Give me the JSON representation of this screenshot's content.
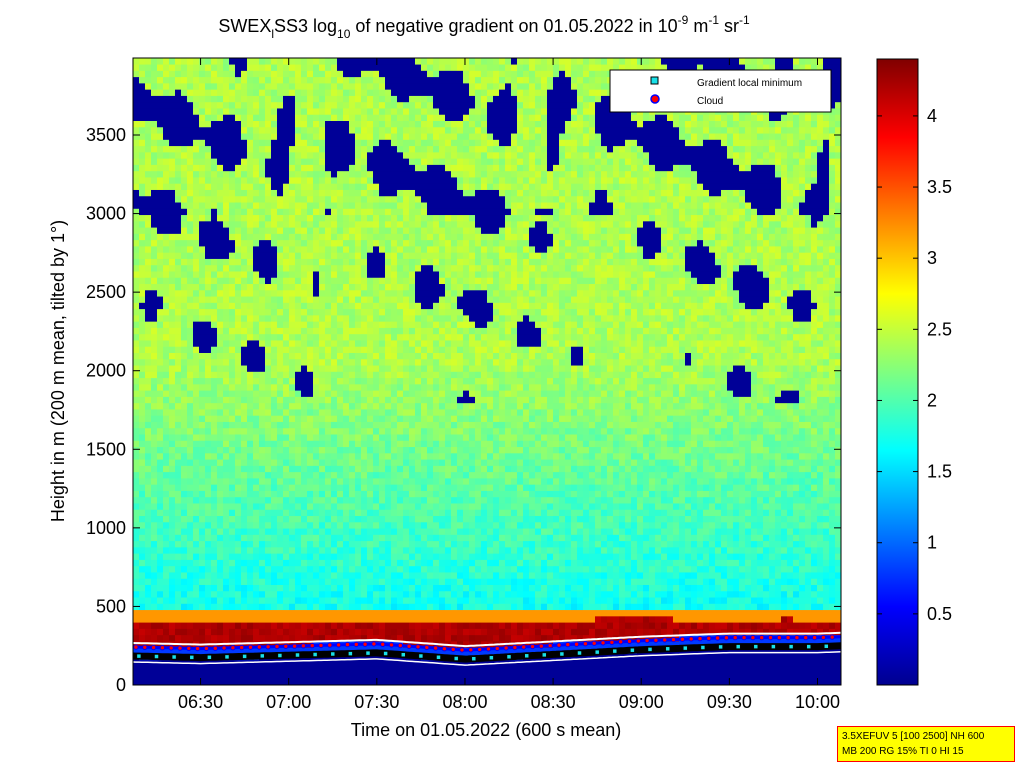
{
  "chart_data": {
    "type": "heatmap",
    "title": {
      "prefix": "SWEX",
      "prefix_sub": "l",
      "middle": "SS3 log",
      "middle_sub": "10",
      "rest": " of negative gradient on 01.05.2022 in 10",
      "exp1": "-9",
      "unit_m": " m",
      "exp2": "-1",
      "unit_sr": " sr",
      "exp3": "-1"
    },
    "xlabel": "Time on 01.05.2022 (600 s mean)",
    "ylabel": "Height in m (200 m mean, tilted by 1°)",
    "x_ticks": [
      "06:30",
      "07:00",
      "07:30",
      "08:00",
      "08:30",
      "09:00",
      "09:30",
      "10:00"
    ],
    "x_tick_minutes": [
      390,
      420,
      450,
      480,
      510,
      540,
      570,
      600
    ],
    "xlim_minutes": [
      367,
      608
    ],
    "y_ticks": [
      "0",
      "500",
      "1000",
      "1500",
      "2000",
      "2500",
      "3000",
      "3500"
    ],
    "y_tick_values": [
      0,
      500,
      1000,
      1500,
      2000,
      2500,
      3000,
      3500
    ],
    "ylim": [
      0,
      3990
    ],
    "colorbar": {
      "ticks": [
        "0.5",
        "1",
        "1.5",
        "2",
        "2.5",
        "3",
        "3.5",
        "4"
      ],
      "values": [
        0.5,
        1,
        1.5,
        2,
        2.5,
        3,
        3.5,
        4
      ],
      "range": [
        0,
        4.4
      ],
      "colormap": "jet"
    },
    "legend": {
      "placement": "top-right",
      "entries": [
        {
          "label": "Gradient local minimum",
          "marker": "square",
          "color": "#19e0e8"
        },
        {
          "label": "Cloud",
          "marker": "circle",
          "color": "#ff0000"
        }
      ]
    },
    "field_summary": {
      "surface_layer_value": 0.1,
      "boundary_layer_top_value": 4.3,
      "free_troposphere_value": 2.3,
      "upper_gap_value": 0.1
    },
    "cloud_base_m": [
      {
        "t": 367,
        "h": 210
      },
      {
        "t": 390,
        "h": 200
      },
      {
        "t": 420,
        "h": 215
      },
      {
        "t": 450,
        "h": 230
      },
      {
        "t": 480,
        "h": 190
      },
      {
        "t": 510,
        "h": 220
      },
      {
        "t": 540,
        "h": 250
      },
      {
        "t": 570,
        "h": 270
      },
      {
        "t": 600,
        "h": 270
      },
      {
        "t": 608,
        "h": 275
      }
    ],
    "boundary_layer_top_m": [
      {
        "t": 367,
        "h": 460
      },
      {
        "t": 450,
        "h": 470
      },
      {
        "t": 480,
        "h": 460
      },
      {
        "t": 520,
        "h": 460
      },
      {
        "t": 530,
        "h": 500
      },
      {
        "t": 540,
        "h": 490
      },
      {
        "t": 560,
        "h": 470
      },
      {
        "t": 590,
        "h": 480
      },
      {
        "t": 608,
        "h": 470
      }
    ]
  },
  "info_box": {
    "line1": "3.5XEFUV 5 [100 2500] NH 600",
    "line2": "MB 200 RG 15% TI 0 HI 15"
  },
  "colors": {
    "axes_bg": "#00008f",
    "frame": "#000000",
    "info_box_bg": "#ffff00",
    "info_box_border": "#ff0000"
  }
}
